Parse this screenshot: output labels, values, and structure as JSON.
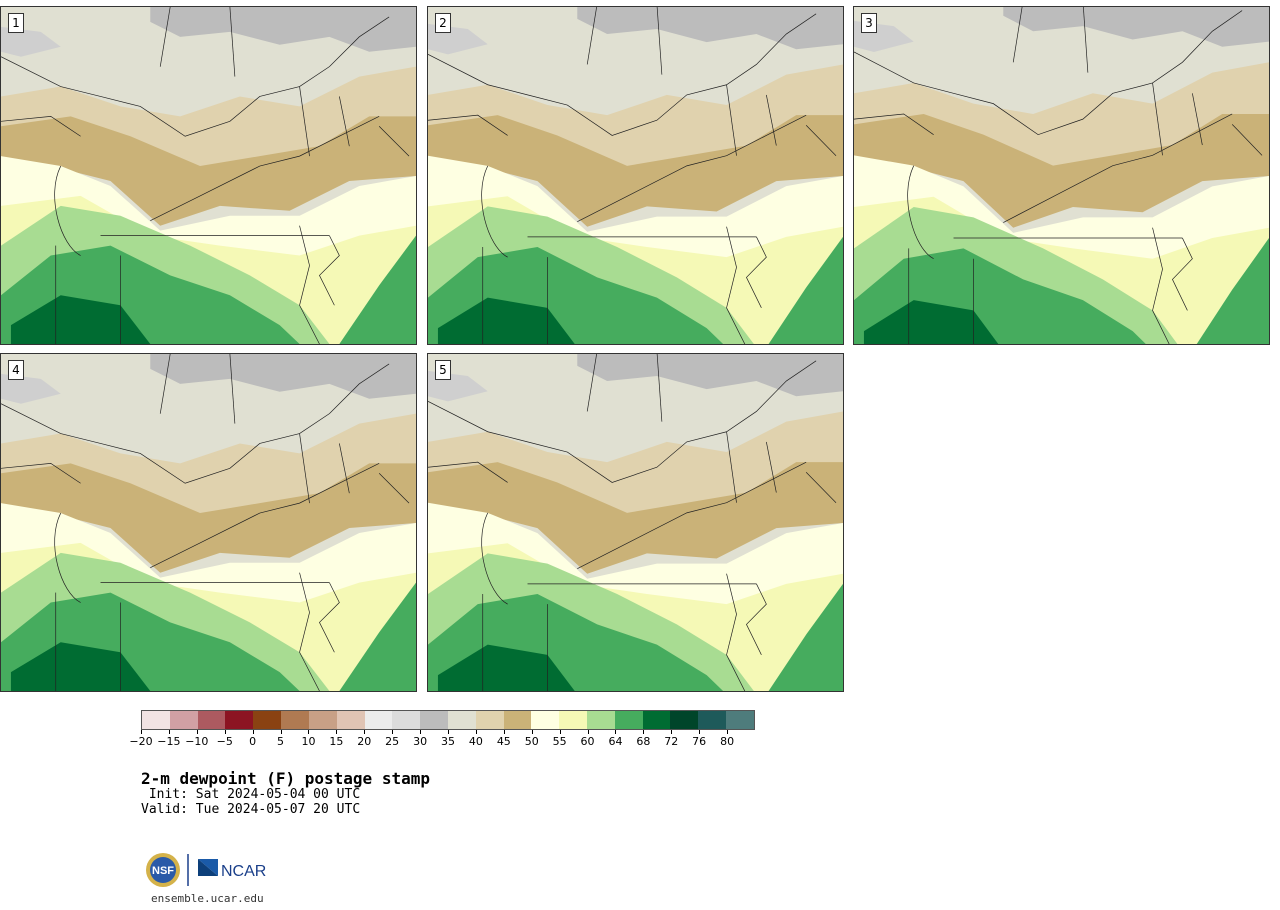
{
  "panels": [
    {
      "label": "1"
    },
    {
      "label": "2"
    },
    {
      "label": "3"
    },
    {
      "label": "4"
    },
    {
      "label": "5"
    }
  ],
  "colorbar": {
    "colors": [
      "#f2e4e4",
      "#d1a0a4",
      "#ad5a60",
      "#8c1422",
      "#8a4212",
      "#b07a52",
      "#c8a086",
      "#e0c4b4",
      "#ececec",
      "#dcdcdc",
      "#bcbcbc",
      "#e0e0d2",
      "#e0d2ae",
      "#cab278",
      "#feffe2",
      "#f5f9b6",
      "#a8dc92",
      "#46ac5e",
      "#006c32",
      "#00452a",
      "#1e5a5a",
      "#4e7c7c"
    ],
    "ticks": [
      "−20",
      "−15",
      "−10",
      "−5",
      "0",
      "5",
      "10",
      "15",
      "20",
      "25",
      "30",
      "35",
      "40",
      "45",
      "50",
      "55",
      "60",
      "64",
      "68",
      "72",
      "76",
      "80"
    ]
  },
  "title": "2-m dewpoint (F) postage stamp",
  "init": " Init: Sat 2024-05-04 00 UTC",
  "valid": "Valid: Tue 2024-05-07 20 UTC",
  "logos": {
    "nsf": "NSF",
    "ncar": "NCAR"
  },
  "url": "ensemble.ucar.edu"
}
